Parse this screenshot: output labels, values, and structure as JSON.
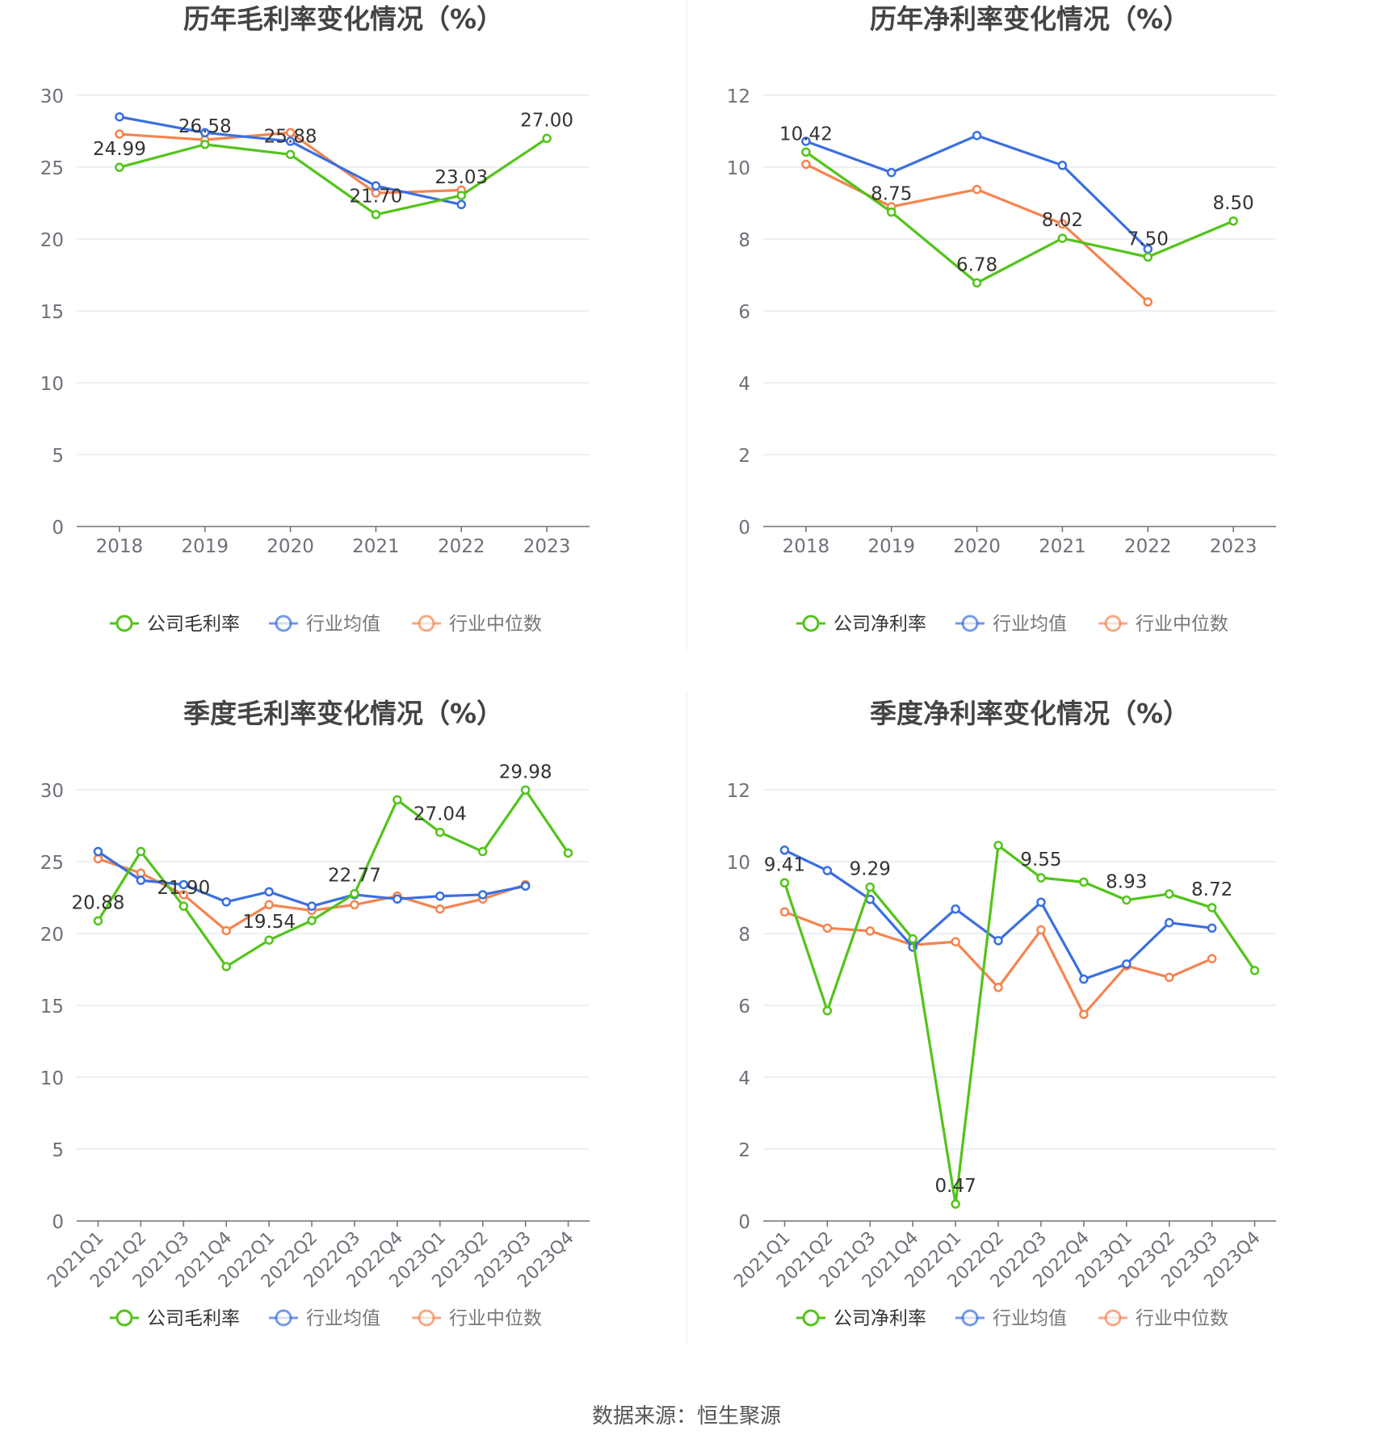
{
  "footer": "数据来源：恒生聚源",
  "colors": {
    "company": "#52c41a",
    "industry_avg": "#3a6fe0",
    "industry_median": "#f5844f"
  },
  "chart_data": [
    {
      "id": "annual-gross",
      "type": "line",
      "title": "历年毛利率变化情况（%）",
      "categories": [
        "2018",
        "2019",
        "2020",
        "2021",
        "2022",
        "2023"
      ],
      "ylim": [
        0,
        30
      ],
      "yticks": [
        0,
        5,
        10,
        15,
        20,
        25,
        30
      ],
      "legend": [
        "公司毛利率",
        "行业均值",
        "行业中位数"
      ],
      "series": [
        {
          "name": "公司毛利率",
          "values": [
            24.99,
            26.58,
            25.88,
            21.7,
            23.03,
            27.0
          ],
          "labels": [
            "24.99",
            "26.58",
            "25.88",
            "21.70",
            "23.03",
            "27.00"
          ]
        },
        {
          "name": "行业均值",
          "values": [
            28.5,
            27.4,
            26.8,
            23.7,
            22.4,
            null
          ]
        },
        {
          "name": "行业中位数",
          "values": [
            27.3,
            26.9,
            27.4,
            23.2,
            23.4,
            null
          ]
        }
      ]
    },
    {
      "id": "annual-net",
      "type": "line",
      "title": "历年净利率变化情况（%）",
      "categories": [
        "2018",
        "2019",
        "2020",
        "2021",
        "2022",
        "2023"
      ],
      "ylim": [
        0,
        12
      ],
      "yticks": [
        0,
        2,
        4,
        6,
        8,
        10,
        12
      ],
      "legend": [
        "公司净利率",
        "行业均值",
        "行业中位数"
      ],
      "series": [
        {
          "name": "公司净利率",
          "values": [
            10.42,
            8.75,
            6.78,
            8.02,
            7.5,
            8.5
          ],
          "labels": [
            "10.42",
            "8.75",
            "6.78",
            "8.02",
            "7.50",
            "8.50"
          ]
        },
        {
          "name": "行业均值",
          "values": [
            10.72,
            9.85,
            10.88,
            10.05,
            7.72,
            null
          ]
        },
        {
          "name": "行业中位数",
          "values": [
            10.08,
            8.9,
            9.38,
            8.42,
            6.25,
            null
          ]
        }
      ]
    },
    {
      "id": "quarterly-gross",
      "type": "line",
      "title": "季度毛利率变化情况（%）",
      "categories": [
        "2021Q1",
        "2021Q2",
        "2021Q3",
        "2021Q4",
        "2022Q1",
        "2022Q2",
        "2022Q3",
        "2022Q4",
        "2023Q1",
        "2023Q2",
        "2023Q3",
        "2023Q4"
      ],
      "ylim": [
        0,
        30
      ],
      "yticks": [
        0,
        5,
        10,
        15,
        20,
        25,
        30
      ],
      "legend": [
        "公司毛利率",
        "行业均值",
        "行业中位数"
      ],
      "series": [
        {
          "name": "公司毛利率",
          "values": [
            20.88,
            25.7,
            21.9,
            17.7,
            19.54,
            20.9,
            22.77,
            29.3,
            27.04,
            25.7,
            29.98,
            25.6
          ],
          "labels": [
            "20.88",
            "",
            "21.90",
            "",
            "19.54",
            "",
            "22.77",
            "",
            "27.04",
            "",
            "29.98",
            ""
          ]
        },
        {
          "name": "行业均值",
          "values": [
            25.7,
            23.7,
            23.4,
            22.2,
            22.9,
            21.9,
            22.7,
            22.4,
            22.6,
            22.7,
            23.3,
            null
          ]
        },
        {
          "name": "行业中位数",
          "values": [
            25.2,
            24.2,
            22.7,
            20.2,
            22.0,
            21.6,
            22.0,
            22.6,
            21.7,
            22.4,
            23.4,
            null
          ]
        }
      ]
    },
    {
      "id": "quarterly-net",
      "type": "line",
      "title": "季度净利率变化情况（%）",
      "categories": [
        "2021Q1",
        "2021Q2",
        "2021Q3",
        "2021Q4",
        "2022Q1",
        "2022Q2",
        "2022Q3",
        "2022Q4",
        "2023Q1",
        "2023Q2",
        "2023Q3",
        "2023Q4"
      ],
      "ylim": [
        0,
        12
      ],
      "yticks": [
        0,
        2,
        4,
        6,
        8,
        10,
        12
      ],
      "legend": [
        "公司净利率",
        "行业均值",
        "行业中位数"
      ],
      "series": [
        {
          "name": "公司净利率",
          "values": [
            9.41,
            5.85,
            9.29,
            7.85,
            0.47,
            10.45,
            9.55,
            9.43,
            8.93,
            9.1,
            8.72,
            6.97
          ],
          "labels": [
            "9.41",
            "",
            "9.29",
            "",
            "0.47",
            "",
            "9.55",
            "",
            "8.93",
            "",
            "8.72",
            ""
          ]
        },
        {
          "name": "行业均值",
          "values": [
            10.32,
            9.75,
            8.95,
            7.62,
            8.68,
            7.8,
            8.87,
            6.73,
            7.15,
            8.3,
            8.15,
            null
          ]
        },
        {
          "name": "行业中位数",
          "values": [
            8.6,
            8.15,
            8.07,
            7.68,
            7.77,
            6.5,
            8.1,
            5.75,
            7.1,
            6.78,
            7.3,
            null
          ]
        }
      ]
    }
  ]
}
